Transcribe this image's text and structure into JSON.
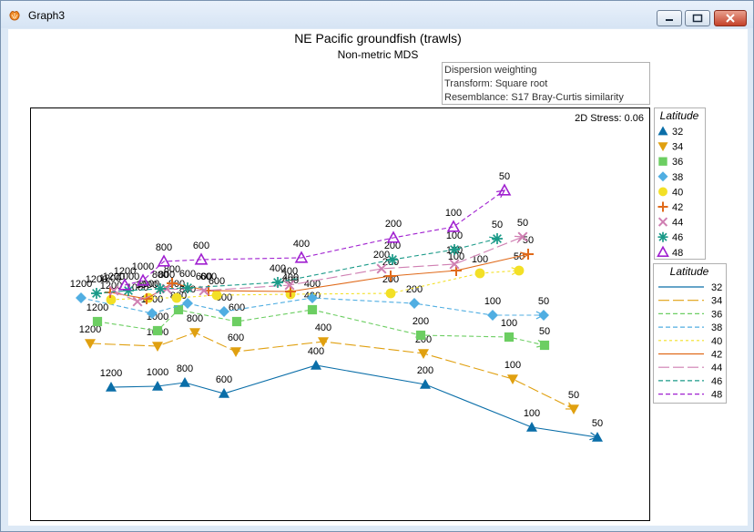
{
  "window": {
    "title": "Graph3"
  },
  "chart_data": {
    "type": "line",
    "title": "NE Pacific groundfish (trawls)",
    "subtitle": "Non-metric MDS",
    "info_lines": [
      "Dispersion weighting",
      "Transform: Square root",
      "Resemblance: S17 Bray-Curtis similarity"
    ],
    "stress_label": "2D Stress: 0.06",
    "legend_title": "Latitude",
    "series": [
      {
        "name": "32",
        "color": "#0a6ea8",
        "marker": "triangle-up",
        "dash": "",
        "points": [
          [
            121,
            424,
            "1200"
          ],
          [
            172,
            423,
            "1000"
          ],
          [
            202,
            419,
            "800"
          ],
          [
            245,
            431,
            "600"
          ],
          [
            346,
            400,
            "400"
          ],
          [
            466,
            421,
            "200"
          ],
          [
            583,
            468,
            "100"
          ],
          [
            655,
            479,
            "50"
          ]
        ]
      },
      {
        "name": "34",
        "color": "#e0a010",
        "marker": "triangle-down",
        "dash": "12,4",
        "points": [
          [
            98,
            376,
            "1200"
          ],
          [
            172,
            379,
            "1000"
          ],
          [
            213,
            364,
            "800"
          ],
          [
            258,
            385,
            "600"
          ],
          [
            354,
            374,
            "400"
          ],
          [
            464,
            387,
            "200"
          ],
          [
            562,
            415,
            "100"
          ],
          [
            629,
            448,
            "50"
          ]
        ]
      },
      {
        "name": "36",
        "color": "#6cce62",
        "marker": "square",
        "dash": "5,3",
        "points": [
          [
            106,
            352,
            "1200"
          ],
          [
            172,
            362,
            "1000"
          ],
          [
            195,
            339,
            "800"
          ],
          [
            259,
            352,
            "600"
          ],
          [
            342,
            339,
            "400"
          ],
          [
            461,
            367,
            "200"
          ],
          [
            558,
            369,
            "100"
          ],
          [
            597,
            378,
            "50"
          ]
        ]
      },
      {
        "name": "38",
        "color": "#50aee2",
        "marker": "diamond",
        "dash": "5,3",
        "points": [
          [
            88,
            326,
            "1200"
          ],
          [
            166,
            343,
            "1000"
          ],
          [
            205,
            332,
            "800"
          ],
          [
            245,
            341,
            "600"
          ],
          [
            342,
            326,
            "400"
          ],
          [
            454,
            332,
            "200"
          ],
          [
            540,
            345,
            "100"
          ],
          [
            596,
            345,
            "50"
          ]
        ]
      },
      {
        "name": "40",
        "color": "#f3e026",
        "marker": "circle",
        "dash": "3,3",
        "points": [
          [
            121,
            328,
            "1200"
          ],
          [
            162,
            326,
            "1000"
          ],
          [
            193,
            326,
            "800"
          ],
          [
            237,
            323,
            "600"
          ],
          [
            318,
            322,
            "400"
          ],
          [
            428,
            321,
            "200"
          ],
          [
            526,
            299,
            "100"
          ],
          [
            569,
            296,
            "50"
          ]
        ]
      },
      {
        "name": "42",
        "color": "#e06a1a",
        "marker": "plus",
        "dash": "",
        "points": [
          [
            120,
            320,
            "1200"
          ],
          [
            160,
            327,
            "1000"
          ],
          [
            188,
            310,
            "800"
          ],
          [
            228,
            318,
            "600"
          ],
          [
            318,
            319,
            "400"
          ],
          [
            428,
            302,
            "200"
          ],
          [
            500,
            296,
            "100"
          ],
          [
            579,
            278,
            "50"
          ]
        ]
      },
      {
        "name": "44",
        "color": "#cf7fb2",
        "marker": "x",
        "dash": "12,4",
        "points": [
          [
            124,
            318,
            "1200"
          ],
          [
            150,
            330,
            "1000"
          ],
          [
            182,
            316,
            "800"
          ],
          [
            223,
            318,
            "600"
          ],
          [
            317,
            312,
            "400"
          ],
          [
            418,
            294,
            "200"
          ],
          [
            498,
            289,
            "100"
          ],
          [
            573,
            259,
            "50"
          ]
        ]
      },
      {
        "name": "46",
        "color": "#1a9a88",
        "marker": "asterisk",
        "dash": "5,3",
        "points": [
          [
            105,
            321,
            "1200"
          ],
          [
            140,
            318,
            "1000"
          ],
          [
            175,
            316,
            "800"
          ],
          [
            205,
            315,
            "600"
          ],
          [
            304,
            309,
            "400"
          ],
          [
            430,
            284,
            "200"
          ],
          [
            498,
            273,
            "100"
          ],
          [
            545,
            261,
            "50"
          ]
        ]
      },
      {
        "name": "48",
        "color": "#a020d0",
        "marker": "triangle-open",
        "dash": "5,3",
        "points": [
          [
            136,
            312,
            "1200"
          ],
          [
            156,
            307,
            "1000"
          ],
          [
            179,
            286,
            "800"
          ],
          [
            220,
            284,
            "600"
          ],
          [
            330,
            282,
            "400"
          ],
          [
            431,
            260,
            "200"
          ],
          [
            497,
            248,
            "100"
          ],
          [
            553,
            208,
            "50"
          ]
        ]
      }
    ]
  }
}
